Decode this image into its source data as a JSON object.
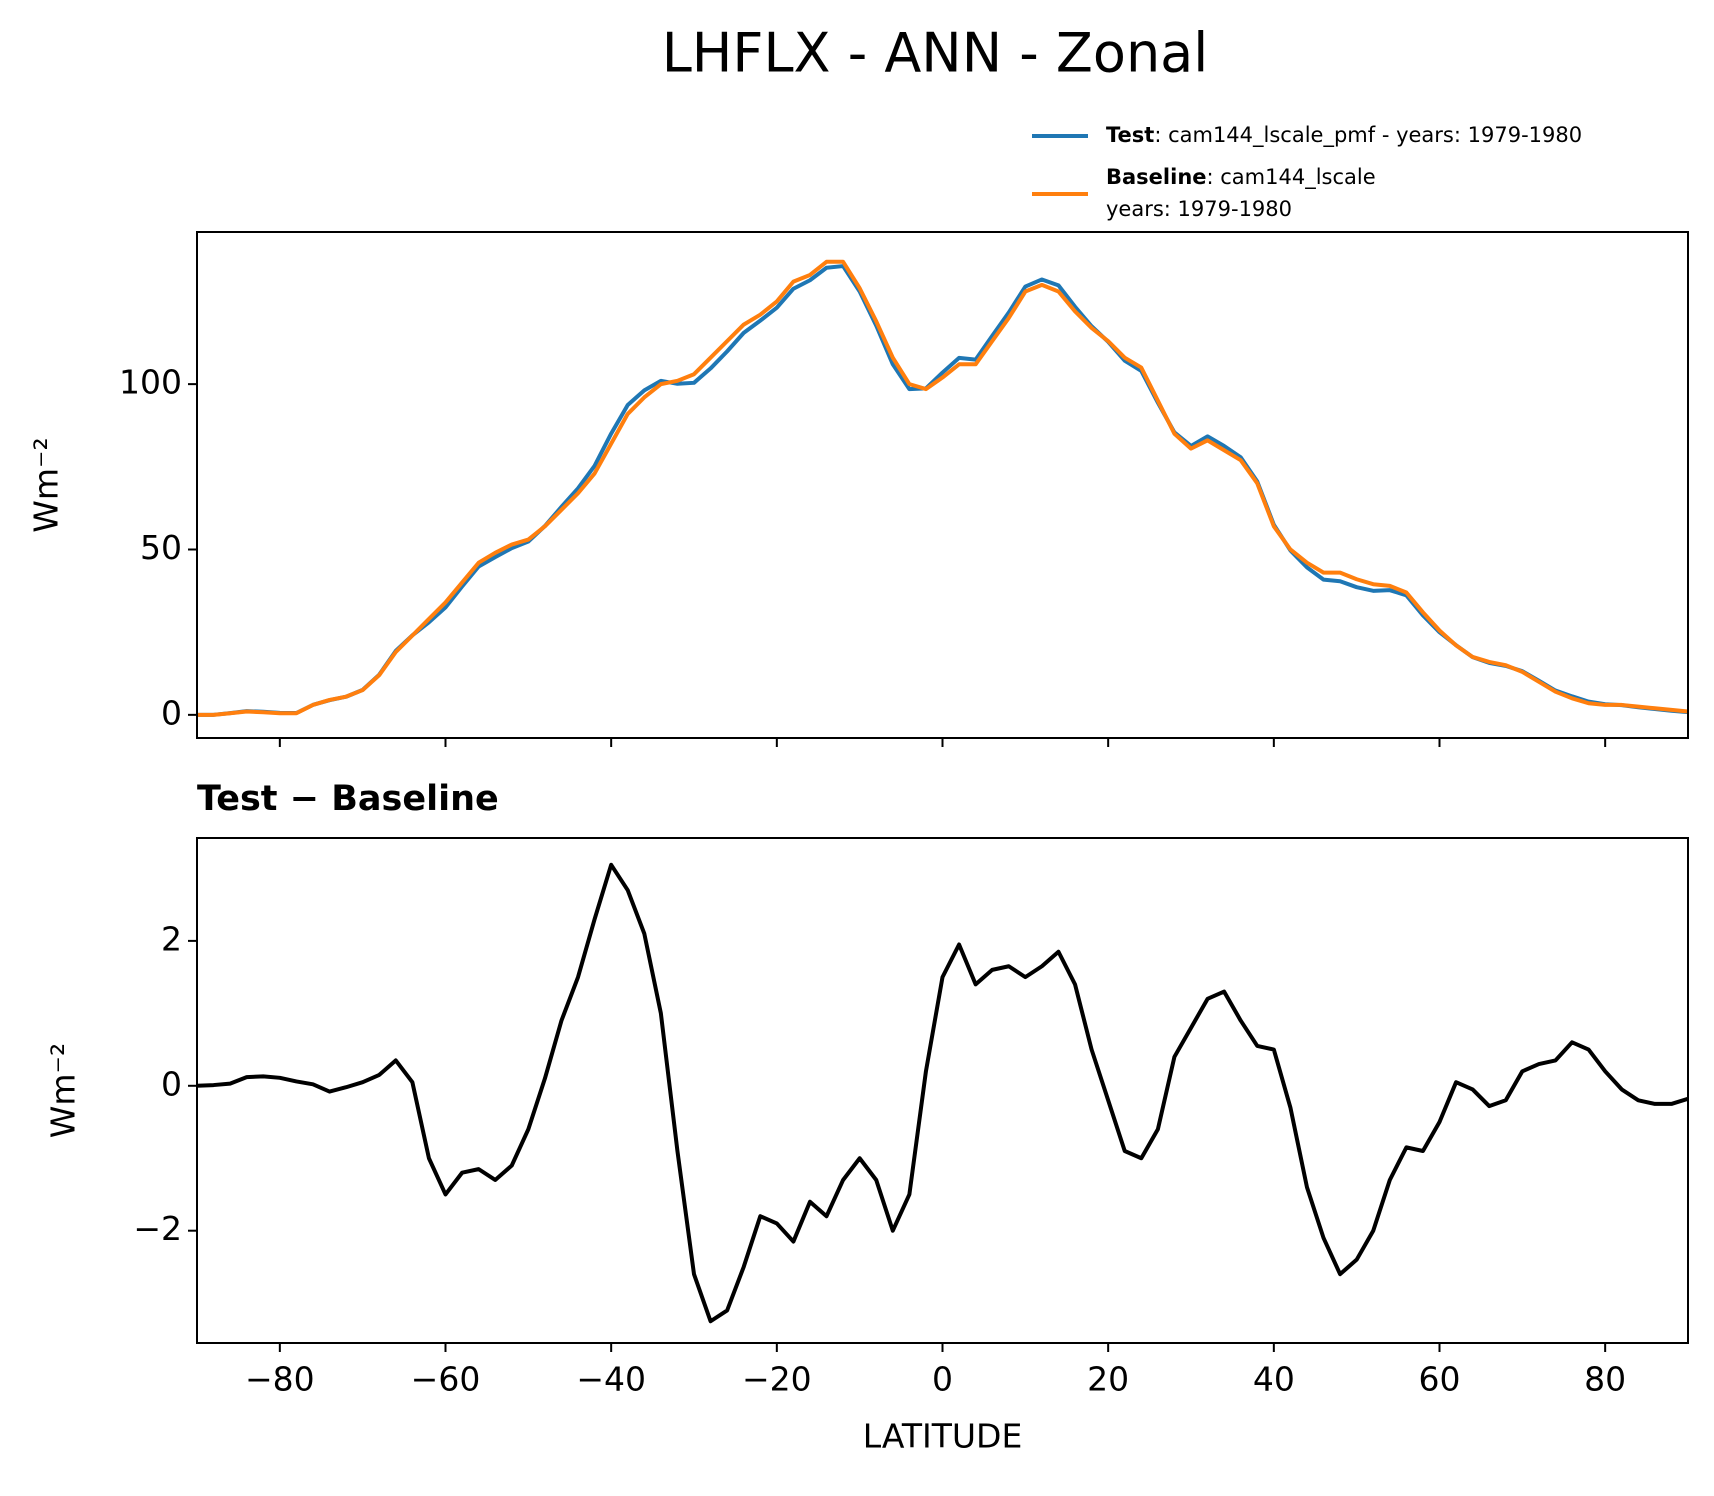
{
  "chart_data": [
    {
      "type": "line",
      "title": "LHFLX - ANN - Zonal",
      "ylabel": "Wm⁻²",
      "x": [
        -90,
        -88,
        -86,
        -84,
        -82,
        -80,
        -78,
        -76,
        -74,
        -72,
        -70,
        -68,
        -66,
        -64,
        -62,
        -60,
        -58,
        -56,
        -54,
        -52,
        -50,
        -48,
        -46,
        -44,
        -42,
        -40,
        -38,
        -36,
        -34,
        -32,
        -30,
        -28,
        -26,
        -24,
        -22,
        -20,
        -18,
        -16,
        -14,
        -12,
        -10,
        -8,
        -6,
        -4,
        -2,
        0,
        2,
        4,
        6,
        8,
        10,
        12,
        14,
        16,
        18,
        20,
        22,
        24,
        26,
        28,
        30,
        32,
        34,
        36,
        38,
        40,
        42,
        44,
        46,
        48,
        50,
        52,
        54,
        56,
        58,
        60,
        62,
        64,
        66,
        68,
        70,
        72,
        74,
        76,
        78,
        80,
        82,
        84,
        86,
        88,
        90
      ],
      "series": [
        {
          "name": "Test",
          "detail": [
            ": cam144_lscale_pmf - years: 1979-1980"
          ],
          "color": "#1f77b4",
          "values": [
            0,
            0.01,
            0.53,
            1.12,
            0.93,
            0.61,
            0.56,
            3.02,
            4.42,
            5.48,
            7.55,
            12.15,
            19.35,
            24.05,
            28,
            32.5,
            38.8,
            44.85,
            47.7,
            50.4,
            52.4,
            57.1,
            62.9,
            68.5,
            75.3,
            85.05,
            93.7,
            98.1,
            101,
            100.1,
            100.4,
            104.75,
            109.9,
            115.5,
            119.2,
            123.1,
            128.85,
            131.4,
            135.2,
            135.7,
            128,
            117.7,
            106,
            98.5,
            98.7,
            103.5,
            107.95,
            107.4,
            114.6,
            121.65,
            129.5,
            131.65,
            129.85,
            123.4,
            117.5,
            112.8,
            107.1,
            104,
            94.4,
            85.4,
            81.3,
            84.2,
            81.3,
            77.9,
            70.55,
            57.5,
            49.7,
            44.6,
            40.9,
            40.4,
            38.6,
            37.5,
            37.7,
            36.15,
            30.1,
            25,
            21.05,
            17.45,
            15.72,
            14.8,
            13.2,
            10.3,
            7.35,
            5.6,
            4,
            3.2,
            2.95,
            2.3,
            1.75,
            1.25,
            0.82
          ]
        },
        {
          "name": "Baseline",
          "detail": [
            ": cam144_lscale",
            "years: 1979-1980"
          ],
          "color": "#ff7f0e",
          "values": [
            0,
            0,
            0.5,
            1,
            0.8,
            0.5,
            0.5,
            3,
            4.5,
            5.5,
            7.5,
            12,
            19,
            24,
            29,
            34,
            40,
            46,
            49,
            51.5,
            53,
            57,
            62,
            67,
            73,
            82,
            91,
            96,
            100,
            101,
            103,
            108,
            113,
            118,
            121,
            125,
            131,
            133,
            137,
            137,
            129,
            119,
            108,
            100,
            98.5,
            102,
            106,
            106,
            113,
            120,
            128,
            130,
            128,
            122,
            117,
            113,
            108,
            105,
            95,
            85,
            80.5,
            83,
            80,
            77,
            70,
            57,
            50,
            46,
            43,
            43,
            41,
            39.5,
            39,
            37,
            31,
            25.5,
            21,
            17.5,
            16,
            15,
            13,
            10,
            7,
            5,
            3.5,
            3,
            3,
            2.5,
            2,
            1.5,
            1
          ]
        }
      ],
      "xlim": [
        -90,
        90
      ],
      "xticks": [
        {
          "value": -80,
          "label": "−80"
        },
        {
          "value": -60,
          "label": "−60"
        },
        {
          "value": -40,
          "label": "−40"
        },
        {
          "value": -20,
          "label": "−20"
        },
        0,
        20,
        40,
        60,
        80
      ],
      "ylim": [
        -7,
        146
      ],
      "yticks": [
        0,
        50,
        100
      ],
      "grid": false,
      "legend": "upper right"
    },
    {
      "type": "line",
      "title": "Test − Baseline",
      "ylabel": "Wm⁻²",
      "xlabel": "LATITUDE",
      "x": [
        -90,
        -88,
        -86,
        -84,
        -82,
        -80,
        -78,
        -76,
        -74,
        -72,
        -70,
        -68,
        -66,
        -64,
        -62,
        -60,
        -58,
        -56,
        -54,
        -52,
        -50,
        -48,
        -46,
        -44,
        -42,
        -40,
        -38,
        -36,
        -34,
        -32,
        -30,
        -28,
        -26,
        -24,
        -22,
        -20,
        -18,
        -16,
        -14,
        -12,
        -10,
        -8,
        -6,
        -4,
        -2,
        0,
        2,
        4,
        6,
        8,
        10,
        12,
        14,
        16,
        18,
        20,
        22,
        24,
        26,
        28,
        30,
        32,
        34,
        36,
        38,
        40,
        42,
        44,
        46,
        48,
        50,
        52,
        54,
        56,
        58,
        60,
        62,
        64,
        66,
        68,
        70,
        72,
        74,
        76,
        78,
        80,
        82,
        84,
        86,
        88,
        90
      ],
      "color": "#000000",
      "values": [
        0,
        0.01,
        0.03,
        0.12,
        0.13,
        0.11,
        0.06,
        0.02,
        -0.08,
        -0.02,
        0.05,
        0.15,
        0.35,
        0.05,
        -1.0,
        -1.5,
        -1.2,
        -1.15,
        -1.3,
        -1.1,
        -0.6,
        0.1,
        0.9,
        1.5,
        2.3,
        3.05,
        2.7,
        2.1,
        1.0,
        -0.9,
        -2.6,
        -3.25,
        -3.1,
        -2.5,
        -1.8,
        -1.9,
        -2.15,
        -1.6,
        -1.8,
        -1.3,
        -1.0,
        -1.3,
        -2.0,
        -1.5,
        0.2,
        1.5,
        1.95,
        1.4,
        1.6,
        1.65,
        1.5,
        1.65,
        1.85,
        1.4,
        0.5,
        -0.2,
        -0.9,
        -1.0,
        -0.6,
        0.4,
        0.8,
        1.2,
        1.3,
        0.9,
        0.55,
        0.5,
        -0.3,
        -1.4,
        -2.1,
        -2.6,
        -2.4,
        -2.0,
        -1.3,
        -0.85,
        -0.9,
        -0.5,
        0.05,
        -0.05,
        -0.28,
        -0.2,
        0.2,
        0.3,
        0.35,
        0.6,
        0.5,
        0.2,
        -0.05,
        -0.2,
        -0.25,
        -0.25,
        -0.18
      ],
      "xlim": [
        -90,
        90
      ],
      "xticks": [
        {
          "value": -80,
          "label": "−80"
        },
        {
          "value": -60,
          "label": "−60"
        },
        {
          "value": -40,
          "label": "−40"
        },
        {
          "value": -20,
          "label": "−20"
        },
        0,
        20,
        40,
        60,
        80
      ],
      "ylim": [
        -3.55,
        3.42
      ],
      "yticks": [
        {
          "value": -2,
          "label": "−2"
        },
        0,
        2
      ],
      "grid": false
    }
  ]
}
